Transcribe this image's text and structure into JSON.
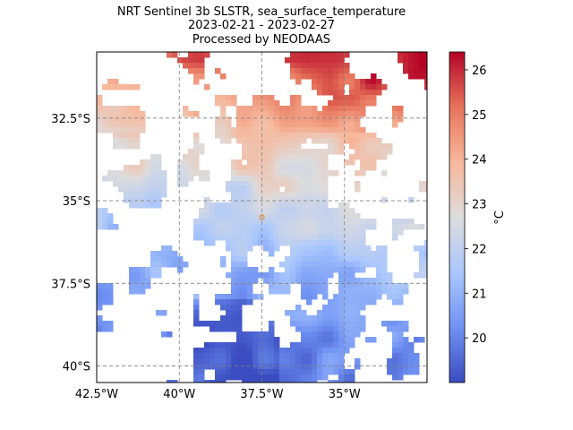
{
  "title": {
    "line1": "NRT Sentinel 3b SLSTR, sea_surface_temperature",
    "line2": "2023-02-21 - 2023-02-27",
    "line3": "Processed by NEODAAS"
  },
  "map": {
    "lon_range": [
      -42.5,
      -32.5
    ],
    "lat_range": [
      -40.5,
      -30.5
    ],
    "x_ticks": [
      {
        "value": -42.5,
        "label": "42.5°W"
      },
      {
        "value": -40,
        "label": "40°W"
      },
      {
        "value": -37.5,
        "label": "37.5°W"
      },
      {
        "value": -35,
        "label": "35°W"
      }
    ],
    "y_ticks": [
      {
        "value": -32.5,
        "label": "32.5°S"
      },
      {
        "value": -35,
        "label": "35°S"
      },
      {
        "value": -37.5,
        "label": "37.5°S"
      },
      {
        "value": -40,
        "label": "40°S"
      }
    ],
    "gridlines": true,
    "marker": {
      "lon": -37.5,
      "lat": -35.5,
      "color": "#e8922a"
    }
  },
  "colorbar": {
    "label": "°C",
    "min": 19.0,
    "max": 26.4,
    "ticks": [
      20,
      21,
      22,
      23,
      24,
      25,
      26
    ],
    "colormap": "coolwarm",
    "colors": [
      "#3b4cc0",
      "#6f92f3",
      "#aac7fd",
      "#dddcdc",
      "#f7b89c",
      "#e7745b",
      "#b40426"
    ]
  },
  "chart_data": {
    "type": "heatmap",
    "title": "NRT Sentinel 3b SLSTR, sea_surface_temperature",
    "variable": "sea_surface_temperature",
    "units": "°C",
    "color_range": [
      19.0,
      26.4
    ],
    "xlim": [
      -42.5,
      -32.5
    ],
    "ylim": [
      -40.5,
      -30.5
    ],
    "field_description_by_latitude": [
      {
        "lat_band": [
          -31,
          -30.5
        ],
        "approx_temp": 25.5
      },
      {
        "lat_band": [
          -32.5,
          -31
        ],
        "approx_temp": 24.8
      },
      {
        "lat_band": [
          -34,
          -32.5
        ],
        "approx_temp": 23.5
      },
      {
        "lat_band": [
          -36,
          -34
        ],
        "approx_temp": 22.3
      },
      {
        "lat_band": [
          -38,
          -36
        ],
        "approx_temp": 21.2
      },
      {
        "lat_band": [
          -40.5,
          -38
        ],
        "approx_temp": 20.0
      }
    ]
  }
}
